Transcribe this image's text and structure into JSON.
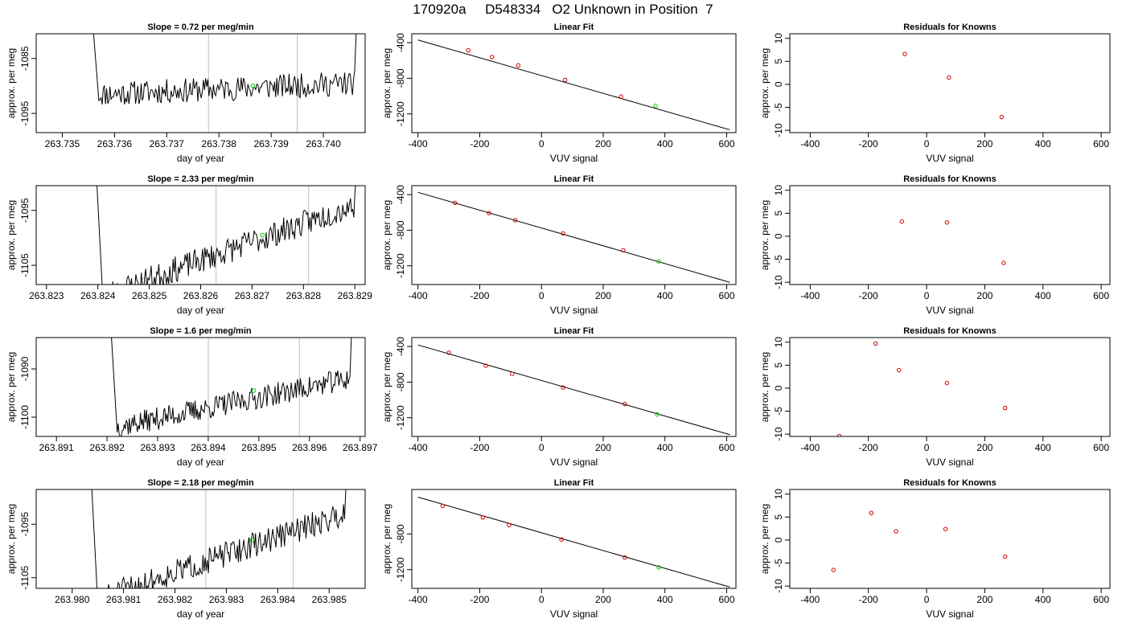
{
  "page": {
    "title": "170920a     D548334   O2 Unknown in Position  7"
  },
  "colors": {
    "axis": "#000000",
    "line": "#000000",
    "vline": "#bebebe",
    "known_point": "#cd0000",
    "unknown_point": "#00cc00"
  },
  "chart_data": [
    {
      "panel": "drift",
      "row": 0,
      "type": "line",
      "title": "Slope =  0.72  per meg/min",
      "xlabel": "day of year",
      "ylabel": "approx. per meg",
      "xlim": [
        263.7345,
        263.7408
      ],
      "ylim": [
        -1098.5,
        -1080.5
      ],
      "xticks": [
        263.735,
        263.736,
        263.737,
        263.738,
        263.739,
        263.74
      ],
      "xtick_labels": [
        "263.735",
        "263.736",
        "263.737",
        "263.738",
        "263.739",
        "263.740"
      ],
      "yticks": [
        -1085,
        -1095
      ],
      "ytick_labels": [
        "-1085",
        "-1095"
      ],
      "vlines": [
        263.7378,
        263.7395
      ],
      "unknown_point": {
        "x": 263.73865,
        "y": -1090
      },
      "trace": {
        "x_start": 263.7357,
        "x_end": 263.7406,
        "level_start": -1091.5,
        "level_end": -1089.5,
        "noise": 1.6,
        "seed": 11,
        "spike_left": true,
        "spike_right": true
      }
    },
    {
      "panel": "fit",
      "row": 0,
      "type": "scatter",
      "title": "Linear Fit",
      "xlabel": "VUV signal",
      "ylabel": "approx. per meg",
      "xlim": [
        -420,
        630
      ],
      "ylim": [
        -1410,
        -300
      ],
      "xticks": [
        -400,
        -200,
        0,
        200,
        400,
        600
      ],
      "xtick_labels": [
        "-400",
        "-200",
        "0",
        "200",
        "400",
        "600"
      ],
      "yticks": [
        -400,
        -800,
        -1200
      ],
      "ytick_labels": [
        "-400",
        "-800",
        "-1200"
      ],
      "fit_line": [
        [
          -400,
          -370
        ],
        [
          610,
          -1378
        ]
      ],
      "knowns": {
        "x": [
          -237,
          -160,
          -75,
          77,
          258
        ],
        "y": [
          -487,
          -561,
          -655,
          -818,
          -1005
        ]
      },
      "unknown": {
        "x": [
          370
        ],
        "y": [
          -1110
        ]
      }
    },
    {
      "panel": "residuals",
      "row": 0,
      "type": "scatter",
      "title": "Residuals for Knowns",
      "xlabel": "VUV signal",
      "ylabel": "approx. per meg",
      "xlim": [
        -470,
        630
      ],
      "ylim": [
        -10.5,
        11
      ],
      "xticks": [
        -400,
        -200,
        0,
        200,
        400,
        600
      ],
      "xtick_labels": [
        "-400",
        "-200",
        "0",
        "200",
        "400",
        "600"
      ],
      "yticks": [
        10,
        5,
        0,
        -5,
        -10
      ],
      "ytick_labels": [
        "10",
        "5",
        "0",
        "-5",
        "-10"
      ],
      "knowns": {
        "x": [
          -75,
          77,
          258
        ],
        "y": [
          6.6,
          1.5,
          -7.1
        ]
      }
    },
    {
      "panel": "drift",
      "row": 1,
      "type": "line",
      "title": "Slope =  2.33  per meg/min",
      "xlabel": "day of year",
      "ylabel": "approx. per meg",
      "xlim": [
        263.8228,
        263.8292
      ],
      "ylim": [
        -1108.5,
        -1090.5
      ],
      "xticks": [
        263.823,
        263.824,
        263.825,
        263.826,
        263.827,
        263.828,
        263.829
      ],
      "xtick_labels": [
        "263.823",
        "263.824",
        "263.825",
        "263.826",
        "263.827",
        "263.828",
        "263.829"
      ],
      "yticks": [
        -1095,
        -1105
      ],
      "ytick_labels": [
        "-1095",
        "-1105"
      ],
      "vlines": [
        263.8263,
        263.8281
      ],
      "unknown_point": {
        "x": 263.8272,
        "y": -1099.5
      },
      "trace": {
        "x_start": 263.8241,
        "x_end": 263.829,
        "level_start": -1110.5,
        "level_end": -1094,
        "noise": 1.7,
        "seed": 23,
        "spike_left": true,
        "spike_right": true
      }
    },
    {
      "panel": "fit",
      "row": 1,
      "type": "scatter",
      "title": "Linear Fit",
      "xlabel": "VUV signal",
      "ylabel": "approx. per meg",
      "xlim": [
        -420,
        630
      ],
      "ylim": [
        -1410,
        -300
      ],
      "xticks": [
        -400,
        -200,
        0,
        200,
        400,
        600
      ],
      "xtick_labels": [
        "-400",
        "-200",
        "0",
        "200",
        "400",
        "600"
      ],
      "yticks": [
        -400,
        -800,
        -1200
      ],
      "ytick_labels": [
        "-400",
        "-800",
        "-1200"
      ],
      "fit_line": [
        [
          -400,
          -375
        ],
        [
          610,
          -1385
        ]
      ],
      "knowns": {
        "x": [
          -280,
          -170,
          -85,
          70,
          265
        ],
        "y": [
          -493,
          -608,
          -688,
          -836,
          -1025
        ]
      },
      "unknown": {
        "x": [
          380
        ],
        "y": [
          -1150
        ]
      }
    },
    {
      "panel": "residuals",
      "row": 1,
      "type": "scatter",
      "title": "Residuals for Knowns",
      "xlabel": "VUV signal",
      "ylabel": "approx. per meg",
      "xlim": [
        -470,
        630
      ],
      "ylim": [
        -10.5,
        11
      ],
      "xticks": [
        -400,
        -200,
        0,
        200,
        400,
        600
      ],
      "xtick_labels": [
        "-400",
        "-200",
        "0",
        "200",
        "400",
        "600"
      ],
      "yticks": [
        10,
        5,
        0,
        -5,
        -10
      ],
      "ytick_labels": [
        "10",
        "5",
        "0",
        "-5",
        "-10"
      ],
      "knowns": {
        "x": [
          -85,
          70,
          265
        ],
        "y": [
          3.2,
          3.0,
          -5.8
        ]
      }
    },
    {
      "panel": "drift",
      "row": 2,
      "type": "line",
      "title": "Slope =  1.6  per meg/min",
      "xlabel": "day of year",
      "ylabel": "approx. per meg",
      "xlim": [
        263.8906,
        263.8971
      ],
      "ylim": [
        -1104,
        -1083.5
      ],
      "xticks": [
        263.891,
        263.892,
        263.893,
        263.894,
        263.895,
        263.896,
        263.897
      ],
      "xtick_labels": [
        "263.891",
        "263.892",
        "263.893",
        "263.894",
        "263.895",
        "263.896",
        "263.897"
      ],
      "yticks": [
        -1090,
        -1100
      ],
      "ytick_labels": [
        "-1090",
        "-1100"
      ],
      "vlines": [
        263.894,
        263.8958
      ],
      "unknown_point": {
        "x": 263.8949,
        "y": -1094.5
      },
      "trace": {
        "x_start": 263.8922,
        "x_end": 263.8968,
        "level_start": -1102,
        "level_end": -1092,
        "noise": 1.7,
        "seed": 37,
        "spike_left": true,
        "spike_right": true
      }
    },
    {
      "panel": "fit",
      "row": 2,
      "type": "scatter",
      "title": "Linear Fit",
      "xlabel": "VUV signal",
      "ylabel": "approx. per meg",
      "xlim": [
        -420,
        630
      ],
      "ylim": [
        -1410,
        -300
      ],
      "xticks": [
        -400,
        -200,
        0,
        200,
        400,
        600
      ],
      "xtick_labels": [
        "-400",
        "-200",
        "0",
        "200",
        "400",
        "600"
      ],
      "yticks": [
        -400,
        -800,
        -1200
      ],
      "ytick_labels": [
        "-400",
        "-800",
        "-1200"
      ],
      "fit_line": [
        [
          -400,
          -383
        ],
        [
          610,
          -1390
        ]
      ],
      "knowns": {
        "x": [
          -300,
          -180,
          -95,
          70,
          270
        ],
        "y": [
          -470,
          -616,
          -708,
          -860,
          -1045
        ]
      },
      "unknown": {
        "x": [
          375
        ],
        "y": [
          -1163
        ]
      }
    },
    {
      "panel": "residuals",
      "row": 2,
      "type": "scatter",
      "title": "Residuals for Knowns",
      "xlabel": "VUV signal",
      "ylabel": "approx. per meg",
      "xlim": [
        -470,
        630
      ],
      "ylim": [
        -10.5,
        11
      ],
      "xticks": [
        -400,
        -200,
        0,
        200,
        400,
        600
      ],
      "xtick_labels": [
        "-400",
        "-200",
        "0",
        "200",
        "400",
        "600"
      ],
      "yticks": [
        10,
        5,
        0,
        -5,
        -10
      ],
      "ytick_labels": [
        "10",
        "5",
        "0",
        "-5",
        "-10"
      ],
      "knowns": {
        "x": [
          -300,
          -175,
          -95,
          70,
          270
        ],
        "y": [
          -10.4,
          9.7,
          3.9,
          1.1,
          -4.3
        ]
      }
    },
    {
      "panel": "drift",
      "row": 3,
      "type": "line",
      "title": "Slope =  2.18  per meg/min",
      "xlabel": "day of year",
      "ylabel": "approx. per meg",
      "xlim": [
        263.9793,
        263.9857
      ],
      "ylim": [
        -1107,
        -1088.5
      ],
      "xticks": [
        263.98,
        263.981,
        263.982,
        263.983,
        263.984,
        263.985
      ],
      "xtick_labels": [
        "263.980",
        "263.981",
        "263.982",
        "263.983",
        "263.984",
        "263.985"
      ],
      "yticks": [
        -1095,
        -1105
      ],
      "ytick_labels": [
        "-1095",
        "-1105"
      ],
      "vlines": [
        263.9826,
        263.9843
      ],
      "unknown_point": {
        "x": 263.9835,
        "y": -1098
      },
      "trace": {
        "x_start": 263.9805,
        "x_end": 263.9853,
        "level_start": -1109,
        "level_end": -1093,
        "noise": 1.7,
        "seed": 51,
        "spike_left": true,
        "spike_right": true
      }
    },
    {
      "panel": "fit",
      "row": 3,
      "type": "scatter",
      "title": "Linear Fit",
      "xlabel": "VUV signal",
      "ylabel": "approx. per meg",
      "xlim": [
        -420,
        630
      ],
      "ylim": [
        -1410,
        -300
      ],
      "xticks": [
        -400,
        -200,
        0,
        200,
        400,
        600
      ],
      "xtick_labels": [
        "-400",
        "-200",
        "0",
        "200",
        "400",
        "600"
      ],
      "yticks": [
        -800,
        -1200
      ],
      "ytick_labels": [
        "-800",
        "-1200"
      ],
      "fit_line": [
        [
          -400,
          -386
        ],
        [
          610,
          -1395
        ]
      ],
      "knowns": {
        "x": [
          -320,
          -190,
          -105,
          65,
          270
        ],
        "y": [
          -484,
          -614,
          -700,
          -862,
          -1064
        ]
      },
      "unknown": {
        "x": [
          380
        ],
        "y": [
          -1175
        ]
      }
    },
    {
      "panel": "residuals",
      "row": 3,
      "type": "scatter",
      "title": "Residuals for Knowns",
      "xlabel": "VUV signal",
      "ylabel": "approx. per meg",
      "xlim": [
        -470,
        630
      ],
      "ylim": [
        -10.5,
        11
      ],
      "xticks": [
        -400,
        -200,
        0,
        200,
        400,
        600
      ],
      "xtick_labels": [
        "-400",
        "-200",
        "0",
        "200",
        "400",
        "600"
      ],
      "yticks": [
        10,
        5,
        0,
        -5,
        -10
      ],
      "ytick_labels": [
        "10",
        "5",
        "0",
        "-5",
        "-10"
      ],
      "knowns": {
        "x": [
          -320,
          -190,
          -105,
          65,
          270
        ],
        "y": [
          -6.5,
          5.9,
          1.9,
          2.4,
          -3.6
        ]
      }
    }
  ]
}
